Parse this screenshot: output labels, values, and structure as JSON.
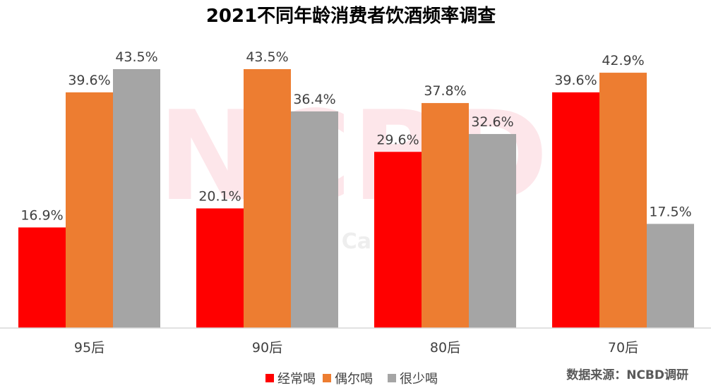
{
  "watermark": {
    "main": "NCBD",
    "sub": "餐 Ca a"
  },
  "source": "数据来源：NCBD调研",
  "colors": {
    "经常喝": "#ff0000",
    "偶尔喝": "#ed7d31",
    "很少喝": "#a5a5a5",
    "axis": "#d9d9d9"
  },
  "chart_data": {
    "type": "bar",
    "title": "2021不同年龄消费者饮酒频率调查",
    "categories": [
      "95后",
      "90后",
      "80后",
      "70后"
    ],
    "series": [
      {
        "name": "经常喝",
        "values": [
          16.9,
          20.1,
          29.6,
          39.6
        ],
        "labels": [
          "16.9%",
          "20.1%",
          "29.6%",
          "39.6%"
        ]
      },
      {
        "name": "偶尔喝",
        "values": [
          39.6,
          43.5,
          37.8,
          42.9
        ],
        "labels": [
          "39.6%",
          "43.5%",
          "37.8%",
          "42.9%"
        ]
      },
      {
        "name": "很少喝",
        "values": [
          43.5,
          36.4,
          32.6,
          17.5
        ],
        "labels": [
          "43.5%",
          "36.4%",
          "32.6%",
          "17.5%"
        ]
      }
    ],
    "ylim": [
      0,
      43.5
    ],
    "grid": false,
    "legend_position": "bottom"
  }
}
